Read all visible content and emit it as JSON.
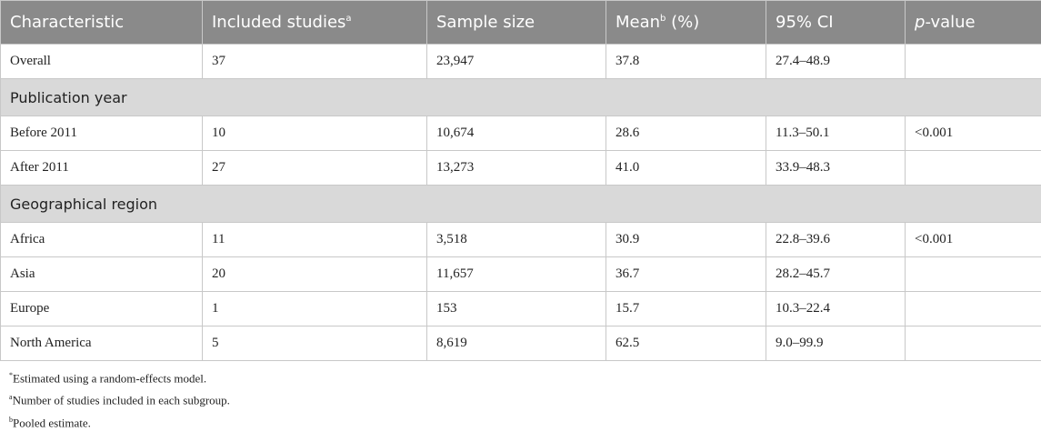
{
  "table": {
    "header": [
      {
        "text": "Characteristic"
      },
      {
        "text": "Included studies",
        "sup": "a"
      },
      {
        "text": "Sample size"
      },
      {
        "text": "Mean",
        "sup": "b",
        "after": " (%)"
      },
      {
        "text": "95% CI"
      },
      {
        "italic": "p",
        "text": "-value"
      }
    ],
    "rows": [
      {
        "cells": [
          "Overall",
          "37",
          "23,947",
          "37.8",
          "27.4–48.9",
          ""
        ]
      },
      {
        "section": "Publication year"
      },
      {
        "cells": [
          "Before 2011",
          "10",
          "10,674",
          "28.6",
          "11.3–50.1",
          "<0.001"
        ]
      },
      {
        "cells": [
          "After 2011",
          "27",
          "13,273",
          "41.0",
          "33.9–48.3",
          ""
        ]
      },
      {
        "section": "Geographical region"
      },
      {
        "cells": [
          "Africa",
          "11",
          "3,518",
          "30.9",
          "22.8–39.6",
          "<0.001"
        ]
      },
      {
        "cells": [
          "Asia",
          "20",
          "11,657",
          "36.7",
          "28.2–45.7",
          ""
        ]
      },
      {
        "cells": [
          "Europe",
          "1",
          "153",
          "15.7",
          "10.3–22.4",
          ""
        ]
      },
      {
        "cells": [
          "North America",
          "5",
          "8,619",
          "62.5",
          "9.0–99.9",
          ""
        ]
      }
    ]
  },
  "footnotes": [
    {
      "mark": "*",
      "text": "Estimated using a random-effects model."
    },
    {
      "mark": "a",
      "text": "Number of studies included in each subgroup."
    },
    {
      "mark": "b",
      "text": "Pooled estimate."
    }
  ]
}
